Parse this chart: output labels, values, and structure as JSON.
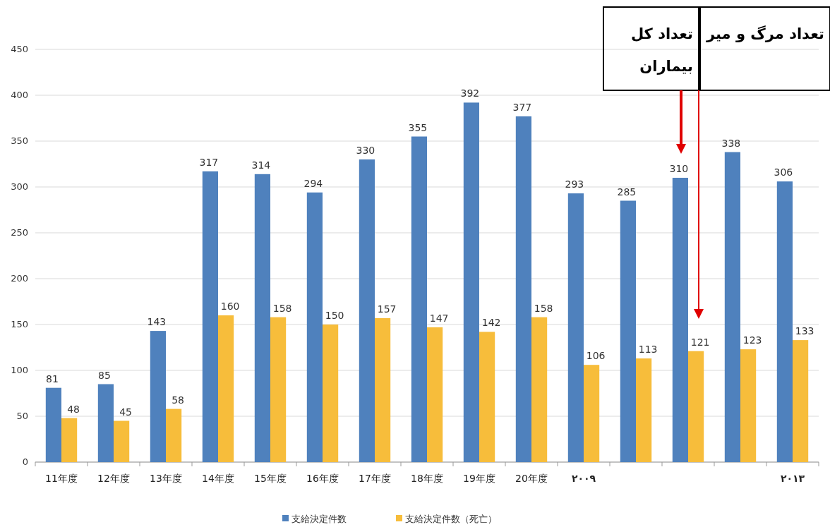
{
  "chart_data": {
    "type": "bar",
    "categories": [
      "11年度",
      "12年度",
      "13年度",
      "14年度",
      "15年度",
      "16年度",
      "17年度",
      "18年度",
      "19年度",
      "20年度",
      "۲۰۰۹",
      null,
      null,
      null,
      "۲۰۱۳"
    ],
    "series": [
      {
        "name": "支給決定件数",
        "color": "#4f81bd",
        "values": [
          81,
          85,
          143,
          317,
          314,
          294,
          330,
          355,
          392,
          377,
          293,
          285,
          310,
          338,
          306
        ]
      },
      {
        "name": "支給決定件数（死亡）",
        "color": "#f7bd3b",
        "values": [
          48,
          45,
          58,
          160,
          158,
          150,
          157,
          147,
          142,
          158,
          106,
          113,
          121,
          123,
          133
        ]
      }
    ],
    "ylim": [
      0,
      450
    ],
    "yticks": [
      0,
      50,
      100,
      150,
      200,
      250,
      300,
      350,
      400,
      450
    ],
    "grid": "y",
    "legend": "bottom",
    "data_labels": true,
    "annotations": [
      "تعداد کل بیماران",
      "تعداد مرگ و میر"
    ]
  }
}
